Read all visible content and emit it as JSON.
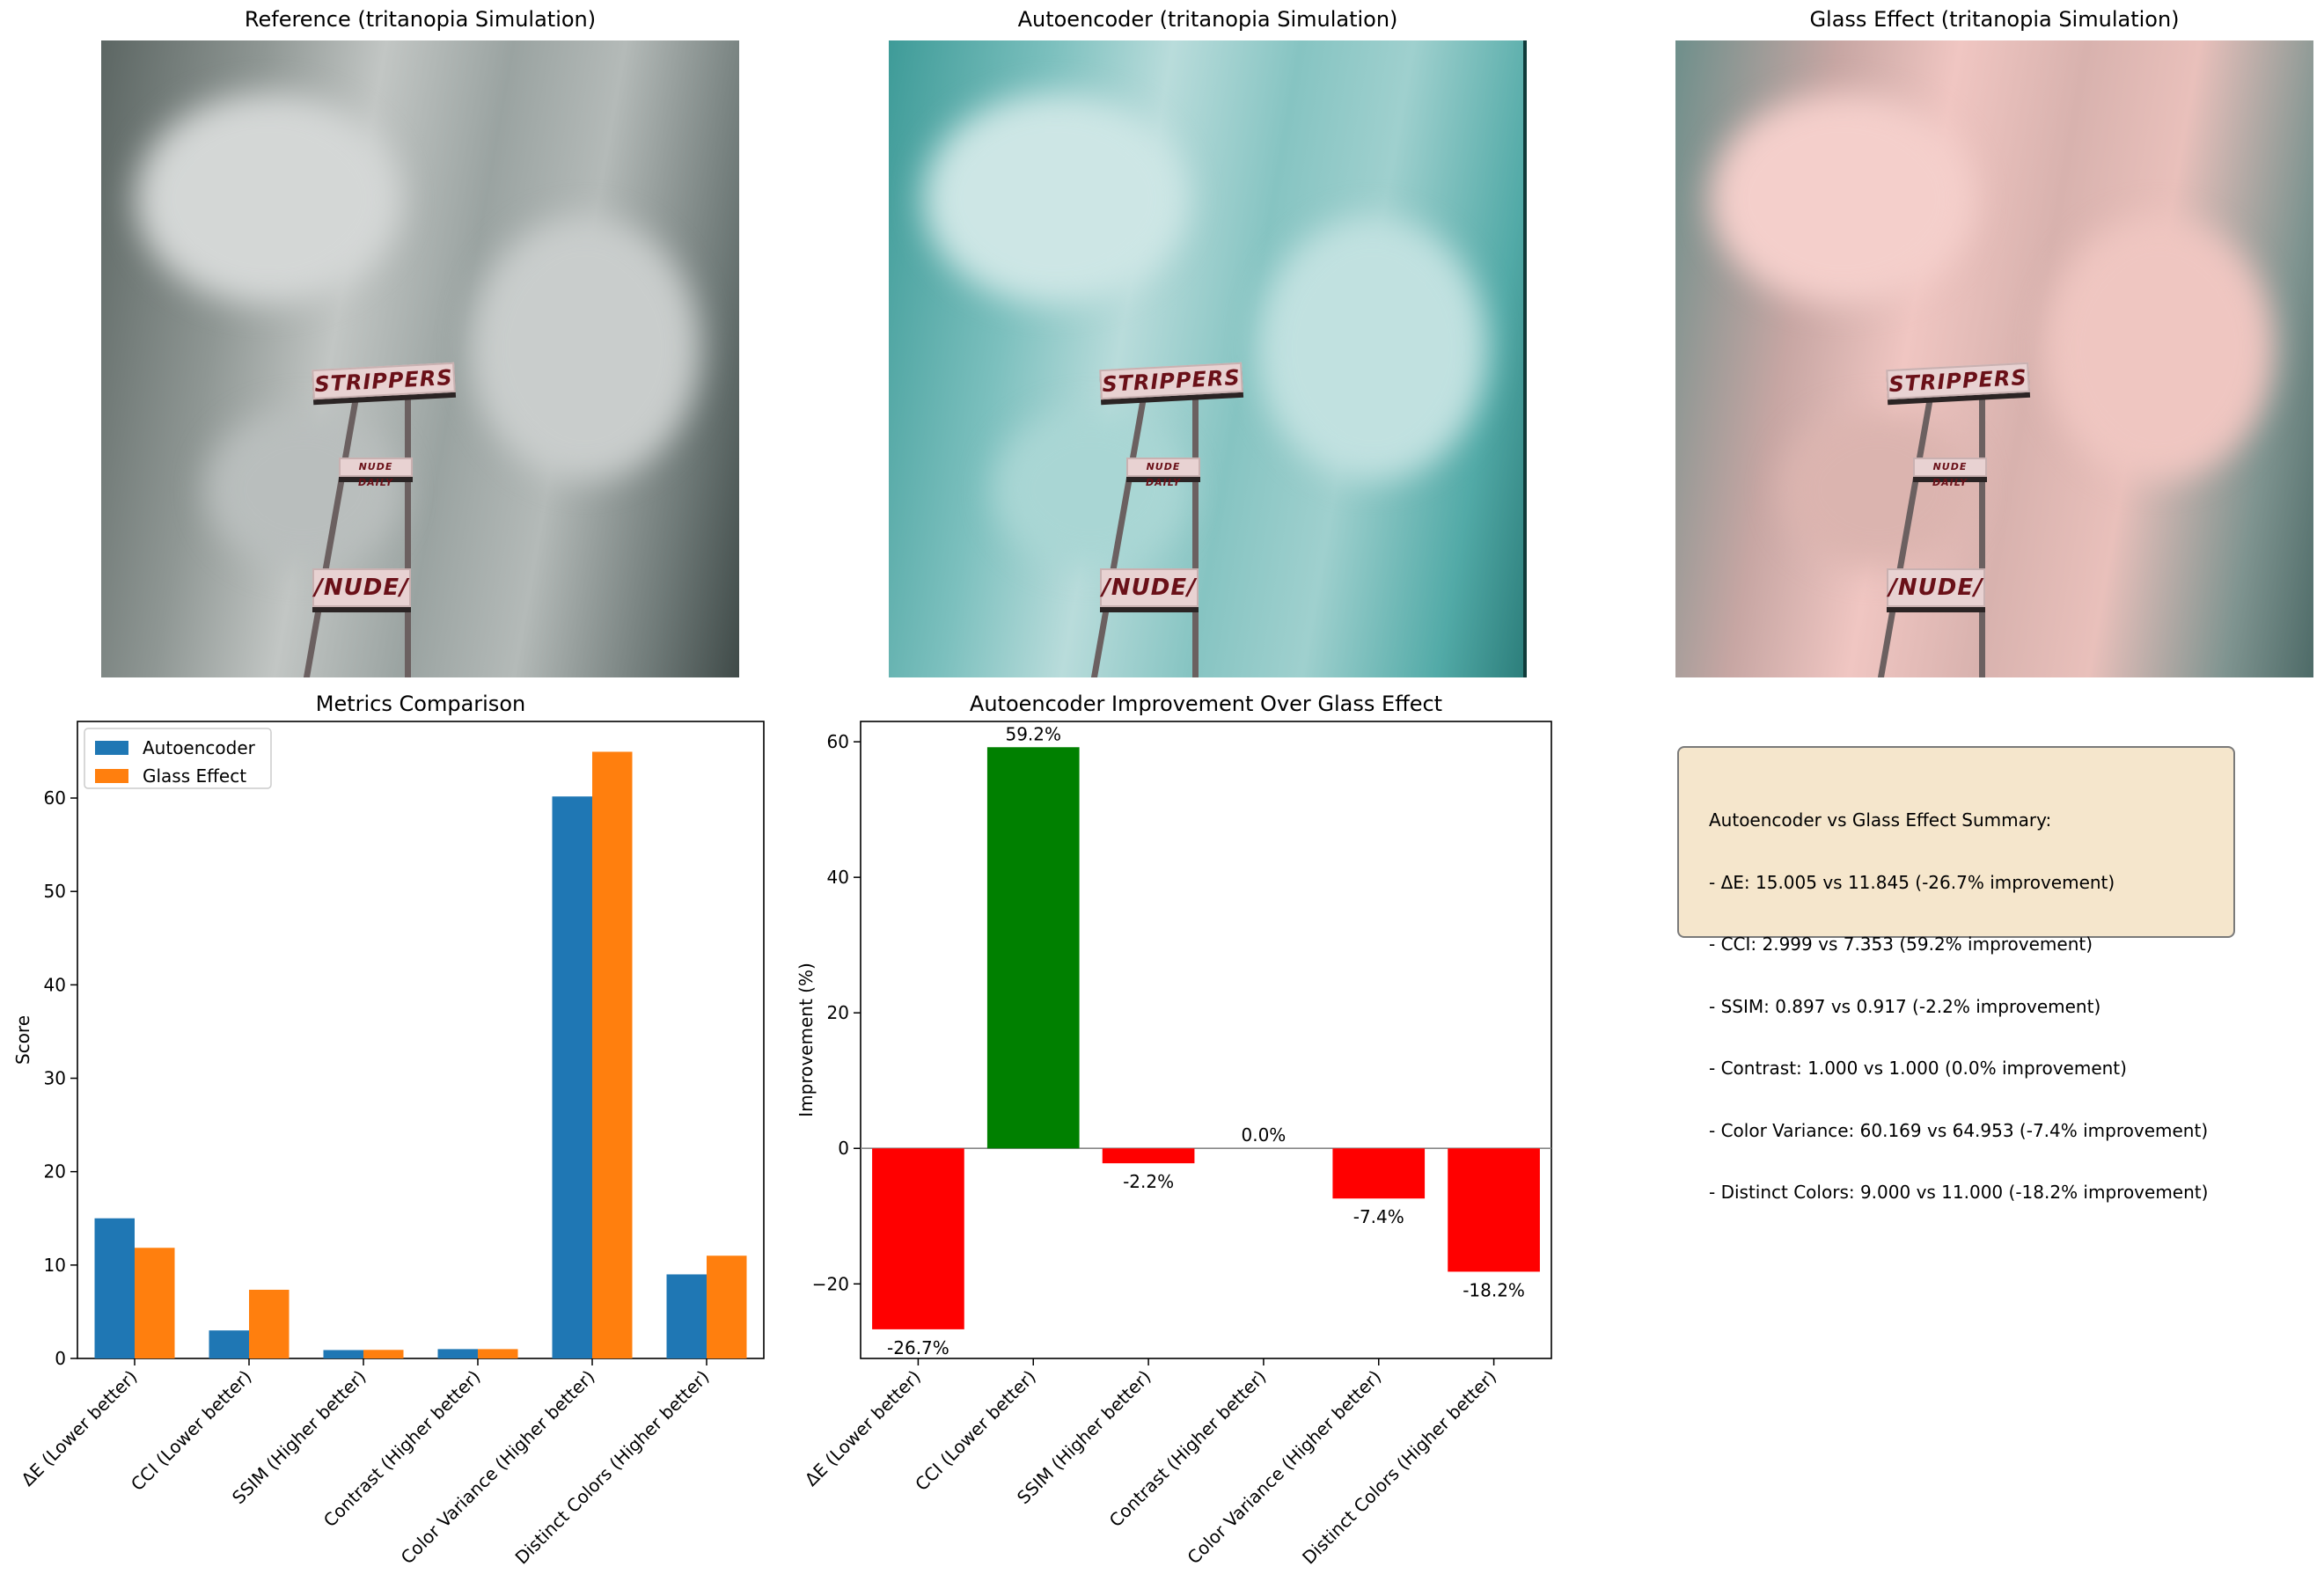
{
  "panels": [
    {
      "title": "Reference (tritanopia Simulation)",
      "tint": "gray"
    },
    {
      "title": "Autoencoder (tritanopia Simulation)",
      "tint": "teal"
    },
    {
      "title": "Glass Effect (tritanopia Simulation)",
      "tint": "pink"
    }
  ],
  "photo_signs": {
    "top": "STRIPPERS",
    "middle": "NUDE DAILY",
    "bottom": "/NUDE/"
  },
  "chart_data": [
    {
      "type": "bar",
      "title": "Metrics Comparison",
      "xlabel": "",
      "ylabel": "Score",
      "categories": [
        "ΔE (Lower better)",
        "CCI (Lower better)",
        "SSIM (Higher better)",
        "Contrast (Higher better)",
        "Color Variance (Higher better)",
        "Distinct Colors (Higher better)"
      ],
      "series": [
        {
          "name": "Autoencoder",
          "values": [
            15.005,
            2.999,
            0.897,
            1.0,
            60.169,
            9.0
          ],
          "color": "#1f77b4"
        },
        {
          "name": "Glass Effect",
          "values": [
            11.845,
            7.353,
            0.917,
            1.0,
            64.953,
            11.0
          ],
          "color": "#ff7f0e"
        }
      ],
      "ylim": [
        0,
        68.2
      ],
      "yticks": [
        0,
        10,
        20,
        30,
        40,
        50,
        60
      ],
      "legend": "top-left",
      "grid": false
    },
    {
      "type": "bar",
      "title": "Autoencoder Improvement Over Glass Effect",
      "xlabel": "",
      "ylabel": "Improvement (%)",
      "categories": [
        "ΔE (Lower better)",
        "CCI (Lower better)",
        "SSIM (Higher better)",
        "Contrast (Higher better)",
        "Color Variance (Higher better)",
        "Distinct Colors (Higher better)"
      ],
      "values": [
        -26.7,
        59.2,
        -2.2,
        0.0,
        -7.4,
        -18.2
      ],
      "data_labels": [
        "-26.7%",
        "59.2%",
        "-2.2%",
        "0.0%",
        "-7.4%",
        "-18.2%"
      ],
      "colors": {
        "positive": "#008000",
        "negative": "#ff0000"
      },
      "ylim": [
        -31,
        63
      ],
      "yticks": [
        -20,
        0,
        20,
        40,
        60
      ],
      "baseline": 0,
      "grid": false
    }
  ],
  "summary": {
    "lines": [
      "Autoencoder vs Glass Effect Summary:",
      "- ΔE: 15.005 vs 11.845 (-26.7% improvement)",
      "- CCI: 2.999 vs 7.353 (59.2% improvement)",
      "- SSIM: 0.897 vs 0.917 (-2.2% improvement)",
      "- Contrast: 1.000 vs 1.000 (0.0% improvement)",
      "- Color Variance: 60.169 vs 64.953 (-7.4% improvement)",
      "- Distinct Colors: 9.000 vs 11.000 (-18.2% improvement)"
    ]
  }
}
